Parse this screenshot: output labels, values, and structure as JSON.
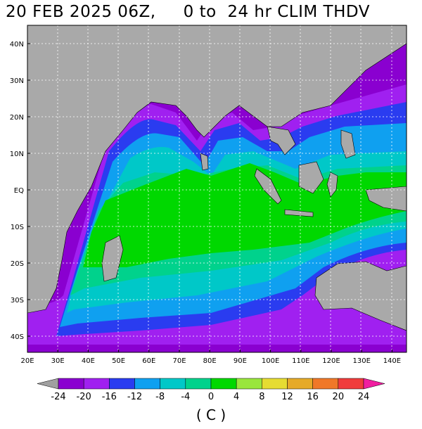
{
  "title": "20 FEB 2025 06Z,     0 to  24 hr CLIM THDV",
  "map": {
    "lon_range": [
      20,
      145
    ],
    "lat_range": [
      -45,
      45
    ],
    "lon_ticks": [
      "20E",
      "30E",
      "40E",
      "50E",
      "60E",
      "70E",
      "80E",
      "90E",
      "100E",
      "110E",
      "120E",
      "130E",
      "140E"
    ],
    "lat_ticks": [
      "40N",
      "30N",
      "20N",
      "10N",
      "EQ",
      "10S",
      "20S",
      "30S",
      "40S"
    ],
    "land_color": "#a9a9a9"
  },
  "colorbar": {
    "labels": [
      "-24",
      "-20",
      "-16",
      "-12",
      "-8",
      "-4",
      "0",
      "4",
      "8",
      "12",
      "16",
      "20",
      "24"
    ],
    "colors": [
      "#a0a0a0",
      "#8a00d0",
      "#a020f0",
      "#2a3cf0",
      "#0fa0f0",
      "#00c8c8",
      "#00d28c",
      "#00d800",
      "#99e63c",
      "#e6dc32",
      "#e6aa28",
      "#f07828",
      "#f03c3c",
      "#f01ea0"
    ],
    "unit": "( C )"
  }
}
